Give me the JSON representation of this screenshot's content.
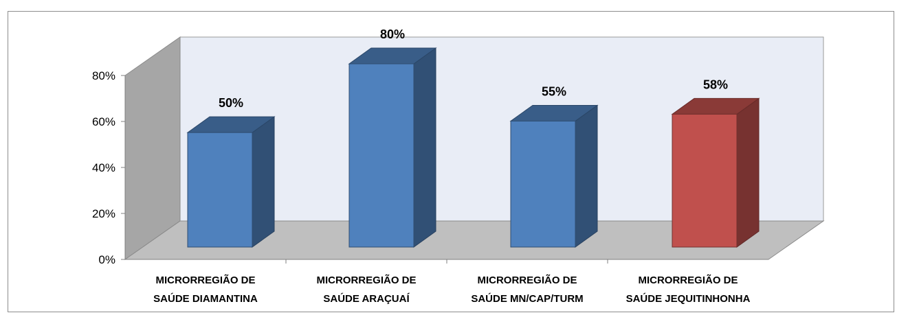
{
  "chart_data": {
    "type": "bar",
    "title": "",
    "xlabel": "",
    "ylabel": "",
    "ylim": [
      0,
      0.8
    ],
    "yticks": [
      "0%",
      "20%",
      "40%",
      "60%",
      "80%"
    ],
    "categories": [
      [
        "MICRORREGIÃO DE",
        "SAÚDE DIAMANTINA"
      ],
      [
        "MICRORREGIÃO DE",
        "SAÚDE ARAÇUAÍ"
      ],
      [
        "MICRORREGIÃO DE",
        "SAÚDE MN/CAP/TURM"
      ],
      [
        "MICRORREGIÃO DE",
        "SAÚDE JEQUITINHONHA"
      ]
    ],
    "values": [
      0.5,
      0.8,
      0.55,
      0.58
    ],
    "data_labels": [
      "50%",
      "80%",
      "55%",
      "58%"
    ],
    "colors": {
      "default_bar": "#4f81bd",
      "highlight_bar": "#c0504d",
      "back_wall": "#e9edf6",
      "side_wall": "#a6a6a6",
      "floor": "#bfbfbf"
    },
    "highlight_index": 3,
    "grid": false,
    "legend": "none",
    "style": "3d-column"
  }
}
